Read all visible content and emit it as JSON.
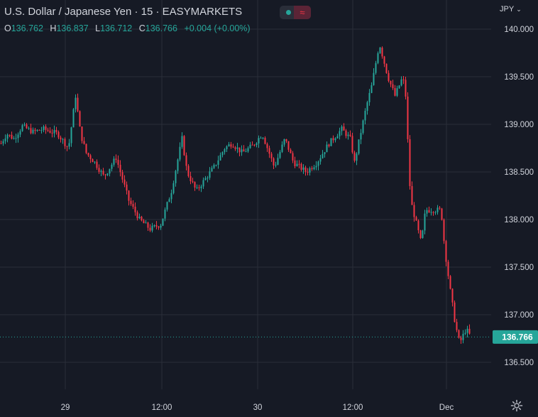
{
  "header": {
    "title": "U.S. Dollar / Japanese Yen · 15 · EASYMARKETS",
    "ohlc": [
      {
        "k": "O",
        "v": "136.762"
      },
      {
        "k": "H",
        "v": "136.837"
      },
      {
        "k": "L",
        "v": "136.712"
      },
      {
        "k": "C",
        "v": "136.766"
      }
    ],
    "change": "+0.004 (+0.00%)",
    "wave_icon": "≈"
  },
  "currency": "JPY",
  "colors": {
    "background": "#161a25",
    "grid": "#2a2e39",
    "up": "#26a69a",
    "down": "#f23645",
    "text": "#d1d4dc"
  },
  "chart_data": {
    "type": "candlestick",
    "ylim": [
      136.2,
      140.15
    ],
    "y_ticks": [
      "140.000",
      "139.500",
      "139.000",
      "138.500",
      "138.000",
      "137.500",
      "137.000",
      "136.500"
    ],
    "x_ticks": [
      "29",
      "12:00",
      "30",
      "12:00",
      "Dec"
    ],
    "last_price": "136.766",
    "path": [
      [
        138.8,
        0
      ],
      [
        138.9,
        8
      ],
      [
        138.85,
        18
      ],
      [
        138.98,
        30
      ],
      [
        138.92,
        45
      ],
      [
        138.95,
        60
      ],
      [
        138.9,
        80
      ],
      [
        138.75,
        95
      ],
      [
        139.3,
        105
      ],
      [
        138.9,
        112
      ],
      [
        138.7,
        120
      ],
      [
        138.6,
        132
      ],
      [
        138.45,
        145
      ],
      [
        138.65,
        162
      ],
      [
        138.45,
        170
      ],
      [
        138.2,
        180
      ],
      [
        138.0,
        195
      ],
      [
        137.9,
        210
      ],
      [
        137.95,
        225
      ],
      [
        138.3,
        240
      ],
      [
        138.85,
        255
      ],
      [
        138.5,
        262
      ],
      [
        138.3,
        275
      ],
      [
        138.45,
        290
      ],
      [
        138.55,
        300
      ],
      [
        138.75,
        315
      ],
      [
        138.8,
        325
      ],
      [
        138.7,
        340
      ],
      [
        138.78,
        355
      ],
      [
        138.9,
        368
      ],
      [
        138.55,
        385
      ],
      [
        138.85,
        400
      ],
      [
        138.6,
        412
      ],
      [
        138.5,
        430
      ],
      [
        138.6,
        445
      ],
      [
        138.8,
        462
      ],
      [
        138.95,
        480
      ],
      [
        138.85,
        492
      ],
      [
        138.6,
        498
      ],
      [
        138.85,
        505
      ],
      [
        139.2,
        515
      ],
      [
        139.4,
        522
      ],
      [
        139.85,
        533
      ],
      [
        139.5,
        545
      ],
      [
        139.3,
        555
      ],
      [
        139.5,
        566
      ],
      [
        139.3,
        570
      ],
      [
        138.2,
        577
      ],
      [
        137.75,
        592
      ],
      [
        138.1,
        598
      ],
      [
        138.1,
        620
      ],
      [
        137.7,
        625
      ],
      [
        137.3,
        632
      ],
      [
        136.9,
        640
      ],
      [
        136.7,
        646
      ],
      [
        136.85,
        655
      ],
      [
        136.766,
        662
      ]
    ]
  }
}
